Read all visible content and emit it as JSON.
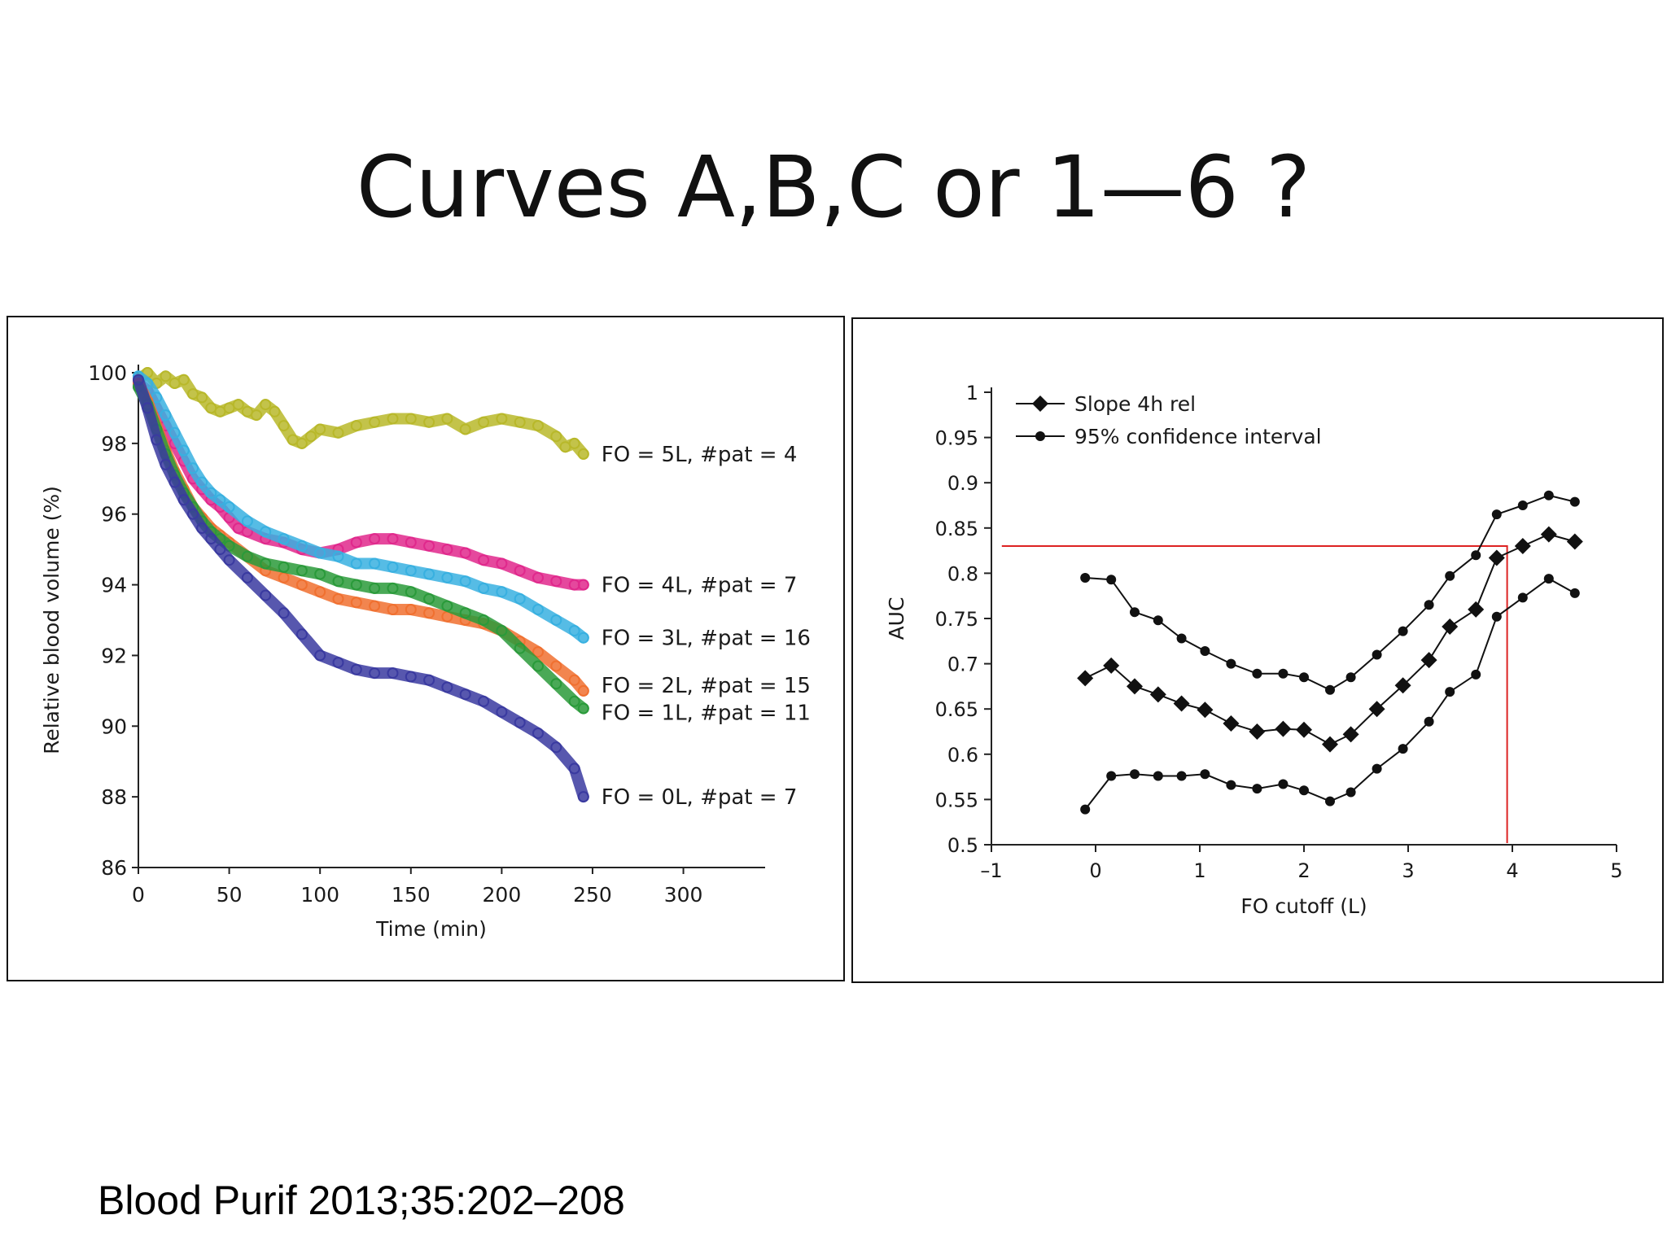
{
  "slide": {
    "title": "Curves A,B,C or 1—6 ?",
    "citation": "Blood Purif 2013;35:202–208"
  },
  "chart_data": [
    {
      "type": "scatter",
      "title": "",
      "xlabel": "Time (min)",
      "ylabel": "Relative blood volume (%)",
      "xlim": [
        0,
        345
      ],
      "ylim": [
        86,
        100
      ],
      "xticks": [
        0,
        50,
        100,
        150,
        200,
        250,
        300
      ],
      "yticks": [
        86,
        88,
        90,
        92,
        94,
        96,
        98,
        100
      ],
      "grid": false,
      "legend": "labels at line ends",
      "marker": "open-circle",
      "series": [
        {
          "label": "FO = 5L, #pat = 4",
          "color": "#b8b82a",
          "x": [
            0,
            5,
            10,
            15,
            20,
            25,
            30,
            35,
            40,
            45,
            50,
            55,
            60,
            65,
            70,
            75,
            80,
            85,
            90,
            95,
            100,
            110,
            120,
            130,
            140,
            150,
            160,
            170,
            180,
            190,
            200,
            210,
            220,
            230,
            235,
            240,
            245
          ],
          "y": [
            99.8,
            100,
            99.7,
            99.9,
            99.7,
            99.8,
            99.4,
            99.3,
            99.0,
            98.9,
            99.0,
            99.1,
            98.9,
            98.8,
            99.1,
            98.9,
            98.5,
            98.1,
            98.0,
            98.2,
            98.4,
            98.3,
            98.5,
            98.6,
            98.7,
            98.7,
            98.6,
            98.7,
            98.4,
            98.6,
            98.7,
            98.6,
            98.5,
            98.2,
            97.9,
            98.0,
            97.7
          ]
        },
        {
          "label": "FO = 4L, #pat = 7",
          "color": "#e0288c",
          "x": [
            0,
            5,
            10,
            15,
            20,
            25,
            30,
            35,
            40,
            45,
            50,
            55,
            60,
            70,
            80,
            90,
            100,
            110,
            120,
            130,
            140,
            150,
            160,
            170,
            180,
            190,
            200,
            210,
            220,
            230,
            240,
            245
          ],
          "y": [
            99.7,
            99.5,
            99.0,
            98.5,
            98.0,
            97.5,
            97.0,
            96.7,
            96.4,
            96.2,
            95.9,
            95.6,
            95.5,
            95.3,
            95.2,
            95.0,
            94.9,
            95.0,
            95.2,
            95.3,
            95.3,
            95.2,
            95.1,
            95.0,
            94.9,
            94.7,
            94.6,
            94.4,
            94.2,
            94.1,
            94.0,
            94.0
          ]
        },
        {
          "label": "FO = 3L, #pat = 16",
          "color": "#38b0e0",
          "x": [
            0,
            5,
            10,
            15,
            20,
            25,
            30,
            35,
            40,
            45,
            50,
            60,
            70,
            80,
            90,
            100,
            110,
            120,
            130,
            140,
            150,
            160,
            170,
            180,
            190,
            200,
            210,
            220,
            230,
            240,
            245
          ],
          "y": [
            99.9,
            99.7,
            99.3,
            98.8,
            98.3,
            97.8,
            97.3,
            96.9,
            96.6,
            96.4,
            96.2,
            95.8,
            95.5,
            95.3,
            95.1,
            94.9,
            94.8,
            94.6,
            94.6,
            94.5,
            94.4,
            94.3,
            94.2,
            94.1,
            93.9,
            93.8,
            93.6,
            93.3,
            93.0,
            92.7,
            92.5
          ]
        },
        {
          "label": "FO = 2L, #pat = 15",
          "color": "#f07030",
          "x": [
            0,
            5,
            10,
            15,
            20,
            25,
            30,
            35,
            40,
            45,
            50,
            60,
            70,
            80,
            90,
            100,
            110,
            120,
            130,
            140,
            150,
            160,
            170,
            180,
            190,
            200,
            210,
            220,
            230,
            240,
            245
          ],
          "y": [
            99.7,
            99.2,
            98.5,
            97.8,
            97.2,
            96.7,
            96.2,
            95.9,
            95.6,
            95.4,
            95.2,
            94.8,
            94.4,
            94.2,
            94.0,
            93.8,
            93.6,
            93.5,
            93.4,
            93.3,
            93.3,
            93.2,
            93.1,
            93.0,
            92.9,
            92.7,
            92.4,
            92.1,
            91.7,
            91.3,
            91.0
          ]
        },
        {
          "label": "FO = 1L, #pat = 11",
          "color": "#2a9a3a",
          "x": [
            0,
            5,
            10,
            15,
            20,
            25,
            30,
            35,
            40,
            45,
            50,
            60,
            70,
            80,
            90,
            100,
            110,
            120,
            130,
            140,
            150,
            160,
            170,
            180,
            190,
            200,
            210,
            220,
            230,
            240,
            245
          ],
          "y": [
            99.6,
            99.1,
            98.4,
            97.7,
            97.1,
            96.6,
            96.2,
            95.8,
            95.5,
            95.3,
            95.1,
            94.8,
            94.6,
            94.5,
            94.4,
            94.3,
            94.1,
            94.0,
            93.9,
            93.9,
            93.8,
            93.6,
            93.4,
            93.2,
            93.0,
            92.7,
            92.2,
            91.7,
            91.2,
            90.7,
            90.5
          ]
        },
        {
          "label": "FO = 0L, #pat = 7",
          "color": "#3a3aa0",
          "x": [
            0,
            5,
            10,
            15,
            20,
            25,
            30,
            35,
            40,
            45,
            50,
            60,
            70,
            80,
            90,
            100,
            110,
            120,
            130,
            140,
            150,
            160,
            170,
            180,
            190,
            200,
            210,
            220,
            230,
            240,
            245
          ],
          "y": [
            99.8,
            99.0,
            98.1,
            97.4,
            96.9,
            96.4,
            96.0,
            95.6,
            95.3,
            95.0,
            94.7,
            94.2,
            93.7,
            93.2,
            92.6,
            92.0,
            91.8,
            91.6,
            91.5,
            91.5,
            91.4,
            91.3,
            91.1,
            90.9,
            90.7,
            90.4,
            90.1,
            89.8,
            89.4,
            88.8,
            88.0
          ]
        }
      ]
    },
    {
      "type": "line",
      "title": "",
      "xlabel": "FO cutoff (L)",
      "ylabel": "AUC",
      "xlim": [
        -1,
        5
      ],
      "ylim": [
        0.5,
        1
      ],
      "xticks": [
        -1,
        0,
        1,
        2,
        3,
        4,
        5
      ],
      "xtick_labels": [
        "–1",
        "0",
        "1",
        "2",
        "3",
        "4",
        "5"
      ],
      "yticks": [
        0.5,
        0.55,
        0.6,
        0.65,
        0.7,
        0.75,
        0.8,
        0.85,
        0.9,
        0.95,
        1
      ],
      "ytick_labels": [
        "0.5",
        "0.55",
        "0.6",
        "0.65",
        "0.7",
        "0.75",
        "0.8",
        "0.85",
        "0.9",
        "0.95",
        "1"
      ],
      "grid": false,
      "legend": "top-left",
      "legend_entries": [
        "Slope 4h rel",
        "95% confidence interval"
      ],
      "x": [
        -0.1,
        0.15,
        0.375,
        0.6,
        0.825,
        1.05,
        1.3,
        1.55,
        1.8,
        2.0,
        2.25,
        2.45,
        2.7,
        2.95,
        3.2,
        3.4,
        3.65,
        3.85,
        4.1,
        4.35,
        4.6
      ],
      "series": [
        {
          "name": "Slope 4h rel",
          "marker": "diamond",
          "values": [
            0.684,
            0.698,
            0.675,
            0.666,
            0.656,
            0.649,
            0.634,
            0.625,
            0.628,
            0.627,
            0.611,
            0.622,
            0.65,
            0.676,
            0.704,
            0.741,
            0.76,
            0.817,
            0.83,
            0.843,
            0.835
          ]
        },
        {
          "marker": "circle",
          "values": [
            0.795,
            0.793,
            0.757,
            0.748,
            0.728,
            0.714,
            0.7,
            0.689,
            0.689,
            0.685,
            0.671,
            0.685,
            0.71,
            0.736,
            0.765,
            0.797,
            0.82,
            0.865,
            0.875,
            0.886,
            0.879
          ]
        },
        {
          "marker": "circle",
          "values": [
            0.539,
            0.576,
            0.578,
            0.576,
            0.576,
            0.578,
            0.566,
            0.562,
            0.567,
            0.56,
            0.548,
            0.558,
            0.584,
            0.606,
            0.636,
            0.669,
            0.688,
            0.752,
            0.773,
            0.794,
            0.778
          ]
        }
      ],
      "annotation": {
        "type": "crosshair",
        "x": 3.95,
        "y": 0.83,
        "color": "#dd2222"
      }
    }
  ]
}
